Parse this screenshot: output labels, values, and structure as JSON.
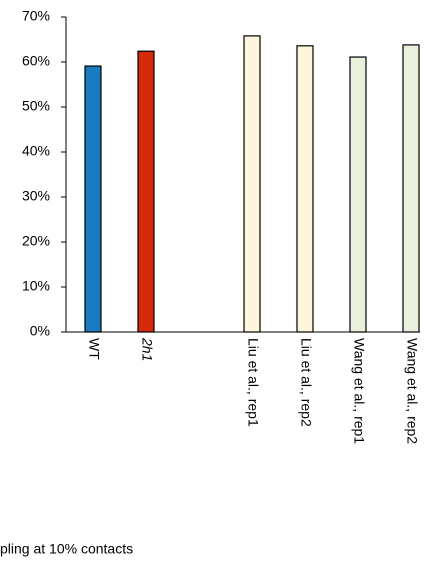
{
  "chart_data": {
    "type": "bar",
    "categories": [
      "WT",
      "2h1",
      null,
      "Liu et al., rep1",
      "Liu et al., rep2",
      "Wang et al., rep1",
      "Wang et al., rep2"
    ],
    "italic_categories": [
      "2h1"
    ],
    "values": [
      59.1,
      62.4,
      null,
      65.8,
      63.6,
      61.1,
      63.8
    ],
    "colors": [
      "#1b7bc0",
      "#d42a0a",
      null,
      "#fdf5dc",
      "#fdf5dc",
      "#e9f1dd",
      "#e9f1dd"
    ],
    "ylim": [
      0,
      70
    ],
    "yticks": [
      {
        "value": 0,
        "label": "0%"
      },
      {
        "value": 10,
        "label": "10%"
      },
      {
        "value": 20,
        "label": "20%"
      },
      {
        "value": 30,
        "label": "30%"
      },
      {
        "value": 40,
        "label": "40%"
      },
      {
        "value": 50,
        "label": "50%"
      },
      {
        "value": 60,
        "label": "60%"
      },
      {
        "value": 70,
        "label": "70%"
      }
    ],
    "grid": false,
    "note": "pling at 10% contacts"
  }
}
